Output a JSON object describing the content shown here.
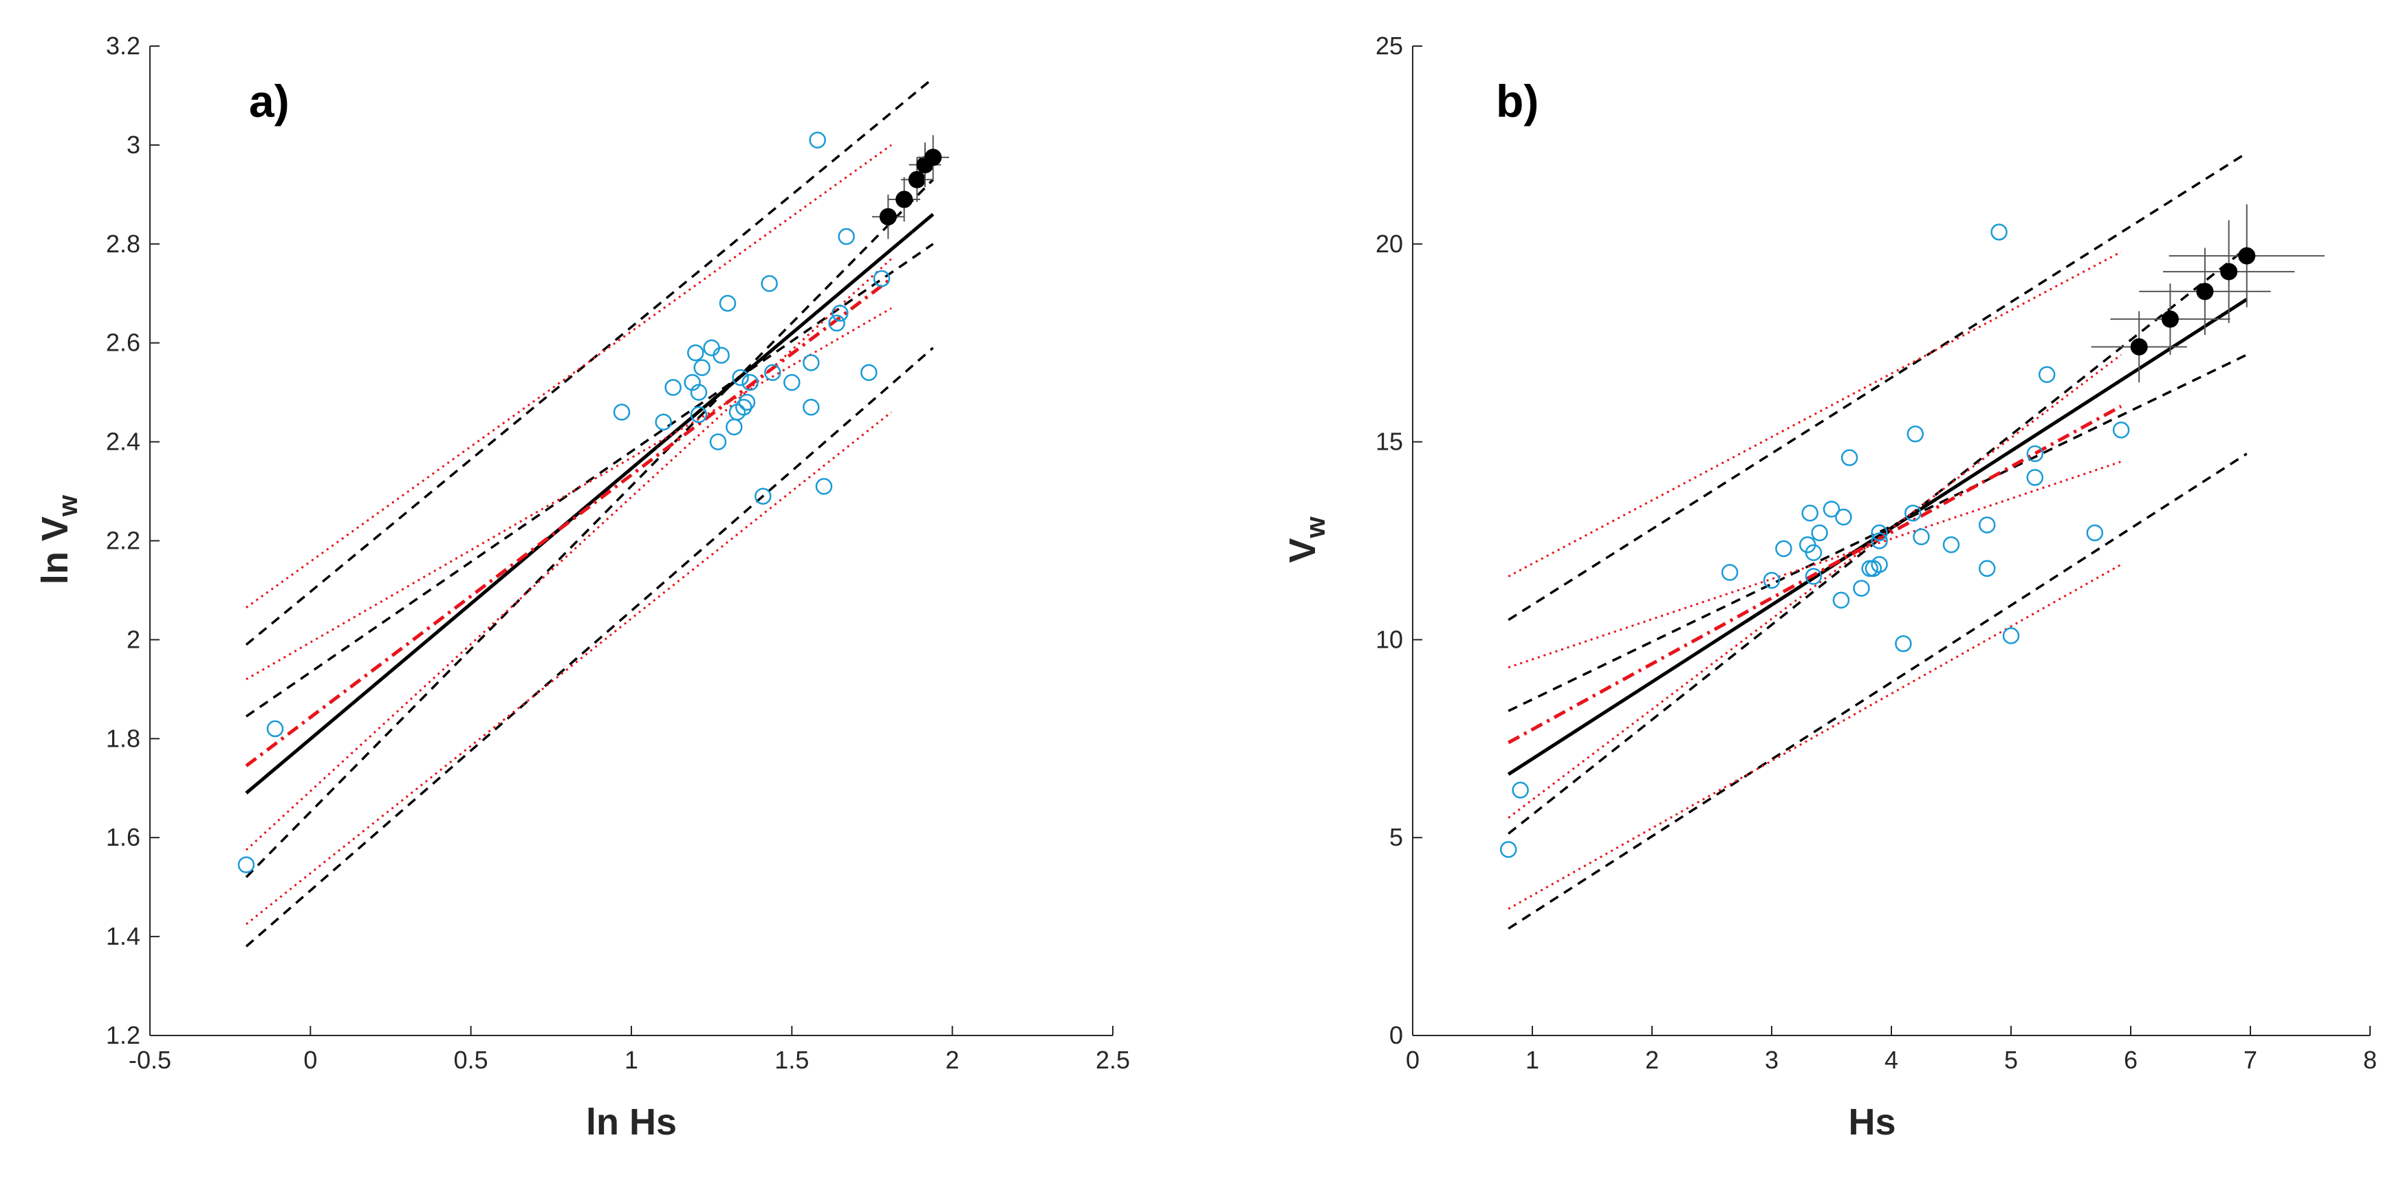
{
  "figure": {
    "colors": {
      "axis": "#262626",
      "fit": "#000000",
      "band": "#000000",
      "red": "#e8141c",
      "obs": "#1a9bd7",
      "mean": "#000000",
      "error": "#555555"
    }
  },
  "chart_data": [
    {
      "type": "scatter",
      "panel_label": "a)",
      "xlabel": "ln Hs",
      "ylabel_main": "ln V",
      "ylabel_sub": "w",
      "xlim": [
        -0.5,
        2.5
      ],
      "ylim": [
        1.2,
        3.2
      ],
      "xticks": [
        -0.5,
        0,
        0.5,
        1,
        1.5,
        2,
        2.5
      ],
      "xtick_labels": [
        "-0.5",
        "0",
        "0.5",
        "1",
        "1.5",
        "2",
        "2.5"
      ],
      "yticks": [
        1.2,
        1.4,
        1.6,
        1.8,
        2,
        2.2,
        2.4,
        2.6,
        2.8,
        3,
        3.2
      ],
      "ytick_labels": [
        "1.2",
        "1.4",
        "1.6",
        "1.8",
        "2",
        "2.2",
        "2.4",
        "2.6",
        "2.8",
        "3",
        "3.2"
      ],
      "grid": false,
      "series": [
        {
          "name": "observations",
          "style": "open-circle",
          "points": [
            [
              -0.2,
              1.545
            ],
            [
              -0.11,
              1.82
            ],
            [
              0.97,
              2.46
            ],
            [
              1.1,
              2.44
            ],
            [
              1.13,
              2.51
            ],
            [
              1.19,
              2.52
            ],
            [
              1.2,
              2.58
            ],
            [
              1.21,
              2.5
            ],
            [
              1.21,
              2.455
            ],
            [
              1.22,
              2.55
            ],
            [
              1.25,
              2.59
            ],
            [
              1.27,
              2.4
            ],
            [
              1.28,
              2.575
            ],
            [
              1.3,
              2.68
            ],
            [
              1.32,
              2.43
            ],
            [
              1.33,
              2.46
            ],
            [
              1.34,
              2.53
            ],
            [
              1.35,
              2.47
            ],
            [
              1.36,
              2.48
            ],
            [
              1.37,
              2.52
            ],
            [
              1.41,
              2.29
            ],
            [
              1.43,
              2.72
            ],
            [
              1.44,
              2.54
            ],
            [
              1.5,
              2.52
            ],
            [
              1.56,
              2.56
            ],
            [
              1.56,
              2.47
            ],
            [
              1.58,
              3.01
            ],
            [
              1.6,
              2.31
            ],
            [
              1.64,
              2.64
            ],
            [
              1.65,
              2.66
            ],
            [
              1.67,
              2.815
            ],
            [
              1.74,
              2.54
            ],
            [
              1.78,
              2.73
            ]
          ]
        },
        {
          "name": "fit",
          "style": "solid",
          "points": [
            [
              -0.2,
              1.69
            ],
            [
              1.94,
              2.86
            ]
          ]
        },
        {
          "name": "confidence band upper",
          "style": "dashed",
          "points": [
            [
              -0.2,
              1.845
            ],
            [
              1.94,
              2.8
            ]
          ]
        },
        {
          "name": "confidence band lower",
          "style": "dashed",
          "points": [
            [
              -0.2,
              1.52
            ],
            [
              1.94,
              2.93
            ]
          ]
        },
        {
          "name": "prediction band upper",
          "style": "dashed",
          "points": [
            [
              -0.2,
              1.99
            ],
            [
              1.94,
              3.135
            ]
          ]
        },
        {
          "name": "prediction band lower",
          "style": "dashed",
          "points": [
            [
              -0.2,
              1.38
            ],
            [
              1.94,
              2.59
            ]
          ]
        },
        {
          "name": "alternative fit",
          "style": "dash-dot-red",
          "points": [
            [
              -0.2,
              1.745
            ],
            [
              1.81,
              2.73
            ]
          ]
        },
        {
          "name": "alternative confidence upper",
          "style": "dotted-red",
          "points": [
            [
              -0.2,
              1.92
            ],
            [
              1.81,
              2.67
            ]
          ]
        },
        {
          "name": "alternative confidence lower",
          "style": "dotted-red",
          "points": [
            [
              -0.2,
              1.575
            ],
            [
              1.81,
              2.77
            ]
          ]
        },
        {
          "name": "alternative prediction upper",
          "style": "dotted-red",
          "points": [
            [
              -0.2,
              2.065
            ],
            [
              1.81,
              3.0
            ]
          ]
        },
        {
          "name": "alternative prediction lower",
          "style": "dotted-red",
          "points": [
            [
              -0.2,
              1.425
            ],
            [
              1.81,
              2.46
            ]
          ]
        },
        {
          "name": "binned means",
          "style": "filled-circle-errorbar",
          "points": [
            [
              1.8,
              2.855
            ],
            [
              1.85,
              2.89
            ],
            [
              1.89,
              2.93
            ],
            [
              1.915,
              2.96
            ],
            [
              1.94,
              2.975
            ]
          ],
          "x_err": [
            0.05,
            0.05,
            0.05,
            0.05,
            0.05
          ],
          "y_err": [
            0.045,
            0.045,
            0.045,
            0.045,
            0.045
          ]
        }
      ]
    },
    {
      "type": "scatter",
      "panel_label": "b)",
      "xlabel": "Hs",
      "ylabel_main": "V",
      "ylabel_sub": "w",
      "xlim": [
        0,
        8
      ],
      "ylim": [
        0,
        25
      ],
      "xticks": [
        0,
        1,
        2,
        3,
        4,
        5,
        6,
        7,
        8
      ],
      "xtick_labels": [
        "0",
        "1",
        "2",
        "3",
        "4",
        "5",
        "6",
        "7",
        "8"
      ],
      "yticks": [
        0,
        5,
        10,
        15,
        20,
        25
      ],
      "ytick_labels": [
        "0",
        "5",
        "10",
        "15",
        "20",
        "25"
      ],
      "grid": false,
      "series": [
        {
          "name": "observations",
          "style": "open-circle",
          "points": [
            [
              0.8,
              4.7
            ],
            [
              0.9,
              6.2
            ],
            [
              2.65,
              11.7
            ],
            [
              3.0,
              11.5
            ],
            [
              3.1,
              12.3
            ],
            [
              3.3,
              12.4
            ],
            [
              3.32,
              13.2
            ],
            [
              3.35,
              11.6
            ],
            [
              3.35,
              12.2
            ],
            [
              3.4,
              12.7
            ],
            [
              3.5,
              13.3
            ],
            [
              3.58,
              11.0
            ],
            [
              3.6,
              13.1
            ],
            [
              3.65,
              14.6
            ],
            [
              3.75,
              11.3
            ],
            [
              3.82,
              11.8
            ],
            [
              3.85,
              11.8
            ],
            [
              3.9,
              12.5
            ],
            [
              3.9,
              12.7
            ],
            [
              3.9,
              11.9
            ],
            [
              4.1,
              9.9
            ],
            [
              4.18,
              13.2
            ],
            [
              4.2,
              15.2
            ],
            [
              4.25,
              12.6
            ],
            [
              4.5,
              12.4
            ],
            [
              4.8,
              11.8
            ],
            [
              4.8,
              12.9
            ],
            [
              4.9,
              20.3
            ],
            [
              5.0,
              10.1
            ],
            [
              5.2,
              14.1
            ],
            [
              5.2,
              14.7
            ],
            [
              5.3,
              16.7
            ],
            [
              5.7,
              12.7
            ],
            [
              5.92,
              15.3
            ]
          ]
        },
        {
          "name": "fit",
          "style": "solid",
          "points": [
            [
              0.8,
              6.6
            ],
            [
              6.97,
              18.6
            ]
          ]
        },
        {
          "name": "confidence band upper",
          "style": "dashed",
          "points": [
            [
              0.8,
              8.2
            ],
            [
              6.97,
              17.2
            ]
          ]
        },
        {
          "name": "confidence band lower",
          "style": "dashed",
          "points": [
            [
              0.8,
              5.1
            ],
            [
              6.97,
              19.9
            ]
          ]
        },
        {
          "name": "prediction band upper",
          "style": "dashed",
          "points": [
            [
              0.8,
              10.5
            ],
            [
              6.97,
              22.3
            ]
          ]
        },
        {
          "name": "prediction band lower",
          "style": "dashed",
          "points": [
            [
              0.8,
              2.7
            ],
            [
              6.97,
              14.7
            ]
          ]
        },
        {
          "name": "alternative fit",
          "style": "dash-dot-red",
          "points": [
            [
              0.8,
              7.4
            ],
            [
              5.92,
              15.9
            ]
          ]
        },
        {
          "name": "alternative confidence upper",
          "style": "dotted-red",
          "points": [
            [
              0.8,
              9.3
            ],
            [
              5.92,
              14.5
            ]
          ]
        },
        {
          "name": "alternative confidence lower",
          "style": "dotted-red",
          "points": [
            [
              0.8,
              5.5
            ],
            [
              5.92,
              17.2
            ]
          ]
        },
        {
          "name": "alternative prediction upper",
          "style": "dotted-red",
          "points": [
            [
              0.8,
              11.6
            ],
            [
              5.92,
              19.8
            ]
          ]
        },
        {
          "name": "alternative prediction lower",
          "style": "dotted-red",
          "points": [
            [
              0.8,
              3.2
            ],
            [
              5.92,
              11.9
            ]
          ]
        },
        {
          "name": "binned means",
          "style": "filled-circle-errorbar",
          "points": [
            [
              6.07,
              17.4
            ],
            [
              6.33,
              18.1
            ],
            [
              6.62,
              18.8
            ],
            [
              6.82,
              19.3
            ],
            [
              6.97,
              19.7
            ]
          ],
          "x_err": [
            0.4,
            0.5,
            0.55,
            0.55,
            0.65
          ],
          "y_err": [
            0.9,
            0.9,
            1.1,
            1.3,
            1.3
          ]
        }
      ]
    }
  ]
}
